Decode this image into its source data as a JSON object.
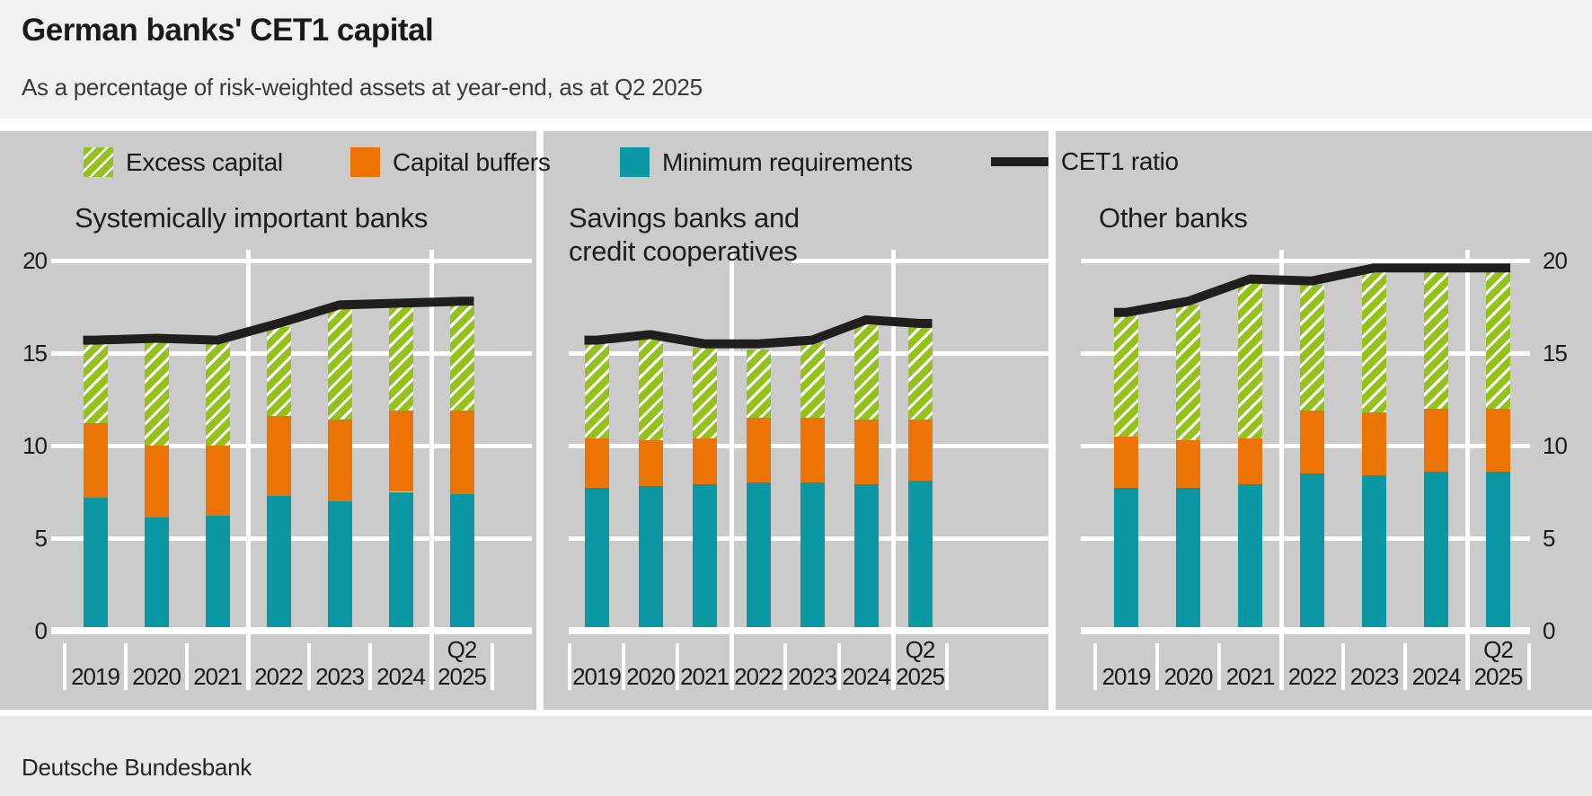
{
  "header": {
    "title": "German banks' CET1 capital",
    "subtitle": "As a percentage of risk-weighted assets at year-end, as at Q2 2025"
  },
  "legend": {
    "items": [
      {
        "id": "excess",
        "label": "Excess capital"
      },
      {
        "id": "buffers",
        "label": "Capital buffers"
      },
      {
        "id": "minimum",
        "label": "Minimum requirements"
      },
      {
        "id": "cet1",
        "label": "CET1 ratio"
      }
    ]
  },
  "axis": {
    "yticks": [
      0,
      5,
      10,
      15,
      20
    ],
    "ylim": [
      0,
      20
    ],
    "grid": true
  },
  "colors": {
    "excess_green": "#94c11c",
    "buffers_orange": "#ec7404",
    "minimum_teal": "#0a98a4",
    "line_black": "#211e1e",
    "panel_bg": "#cbcbcb",
    "header_bg": "#f1f1ef",
    "footer_bg": "#e9e9e9",
    "grid_white": "#ffffff"
  },
  "chart_data": [
    {
      "type": "bar",
      "subtype": "stacked_bar_with_line",
      "title": "Systemically important banks",
      "categories": [
        "2019",
        "2020",
        "2021",
        "2022",
        "2023",
        "2024",
        "Q2 2025"
      ],
      "series": [
        {
          "name": "Minimum requirements",
          "values": [
            7.2,
            6.1,
            6.2,
            7.3,
            7.0,
            7.5,
            7.4
          ]
        },
        {
          "name": "Capital buffers",
          "values": [
            4.0,
            3.9,
            3.8,
            4.3,
            4.4,
            4.4,
            4.5
          ]
        },
        {
          "name": "Excess capital",
          "values": [
            4.5,
            5.6,
            5.6,
            4.8,
            6.0,
            5.6,
            5.9
          ]
        }
      ],
      "line_series": {
        "name": "CET1 ratio",
        "values": [
          15.7,
          15.8,
          15.7,
          16.6,
          17.6,
          17.7,
          17.8
        ]
      },
      "stack_totals": [
        15.7,
        15.6,
        15.6,
        16.4,
        17.4,
        17.5,
        17.8
      ],
      "ylim": [
        0,
        20
      ],
      "y_axis_side": "left"
    },
    {
      "type": "bar",
      "subtype": "stacked_bar_with_line",
      "title": "Savings banks and\ncredit cooperatives",
      "categories": [
        "2019",
        "2020",
        "2021",
        "2022",
        "2023",
        "2024",
        "Q2 2025"
      ],
      "series": [
        {
          "name": "Minimum requirements",
          "values": [
            7.7,
            7.8,
            7.9,
            8.0,
            8.0,
            7.9,
            8.1
          ]
        },
        {
          "name": "Capital buffers",
          "values": [
            2.7,
            2.5,
            2.5,
            3.5,
            3.5,
            3.5,
            3.3
          ]
        },
        {
          "name": "Excess capital",
          "values": [
            5.3,
            5.5,
            4.9,
            3.7,
            4.1,
            5.1,
            5.0
          ]
        }
      ],
      "line_series": {
        "name": "CET1 ratio",
        "values": [
          15.7,
          16.0,
          15.5,
          15.5,
          15.7,
          16.8,
          16.6
        ]
      },
      "stack_totals": [
        15.7,
        15.8,
        15.3,
        15.2,
        15.6,
        16.5,
        16.4
      ],
      "ylim": [
        0,
        20
      ],
      "y_axis_side": "none"
    },
    {
      "type": "bar",
      "subtype": "stacked_bar_with_line",
      "title": "Other banks",
      "categories": [
        "2019",
        "2020",
        "2021",
        "2022",
        "2023",
        "2024",
        "Q2 2025"
      ],
      "series": [
        {
          "name": "Minimum requirements",
          "values": [
            7.7,
            7.7,
            7.9,
            8.5,
            8.4,
            8.6,
            8.6
          ]
        },
        {
          "name": "Capital buffers",
          "values": [
            2.8,
            2.6,
            2.5,
            3.4,
            3.4,
            3.4,
            3.4
          ]
        },
        {
          "name": "Excess capital",
          "values": [
            6.6,
            7.3,
            8.4,
            6.8,
            7.7,
            7.4,
            7.6
          ]
        }
      ],
      "line_series": {
        "name": "CET1 ratio",
        "values": [
          17.2,
          17.8,
          19.0,
          18.9,
          19.6,
          19.6,
          19.6
        ]
      },
      "stack_totals": [
        17.1,
        17.6,
        18.8,
        18.7,
        19.5,
        19.4,
        19.6
      ],
      "ylim": [
        0,
        20
      ],
      "y_axis_side": "right"
    }
  ],
  "footer": {
    "source": "Deutsche Bundesbank"
  }
}
